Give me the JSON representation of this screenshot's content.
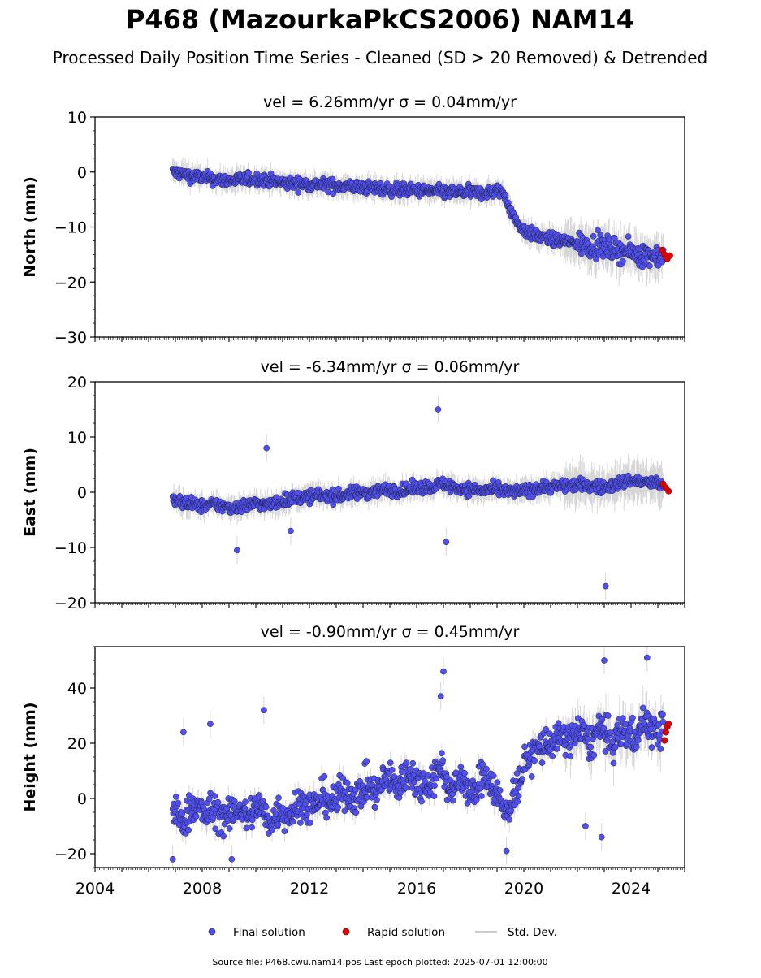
{
  "figure": {
    "title": "P468 (MazourkaPkCS2006) NAM14",
    "subtitle": "Processed Daily Position Time Series - Cleaned (SD > 20 Removed) & Detrended",
    "footer": "Source file: P468.cwu.nam14.pos  Last epoch plotted: 2025-07-01 12:00:00"
  },
  "legend": {
    "final": "Final solution",
    "rapid": "Rapid solution",
    "std": "Std. Dev."
  },
  "colors": {
    "final": "#5050f0",
    "rapid": "#e00000",
    "std": "#bbbbbb"
  },
  "chart_data": [
    {
      "type": "scatter",
      "panel": "north",
      "title": "vel = 6.26mm/yr   σ = 0.04mm/yr",
      "ylabel": "North (mm)",
      "xlim": [
        2004,
        2026
      ],
      "ylim": [
        -30,
        10
      ],
      "yticks": [
        10,
        0,
        -10,
        -20,
        -30
      ],
      "xticks": [
        2004,
        2008,
        2012,
        2016,
        2020,
        2024
      ],
      "series": [
        {
          "name": "Final solution",
          "x": [
            2006.9,
            2007.5,
            2008.0,
            2008.5,
            2009.0,
            2009.5,
            2010.0,
            2010.5,
            2011.0,
            2011.5,
            2012.0,
            2012.5,
            2013.0,
            2013.5,
            2014.0,
            2014.5,
            2015.0,
            2015.5,
            2016.0,
            2016.5,
            2017.0,
            2017.5,
            2018.0,
            2018.5,
            2019.0,
            2019.2,
            2019.4,
            2019.6,
            2019.8,
            2020.0,
            2020.3,
            2020.6,
            2021.0,
            2021.5,
            2022.0,
            2022.5,
            2023.0,
            2023.5,
            2024.0,
            2024.5,
            2025.0,
            2025.2
          ],
          "y": [
            0.0,
            -0.6,
            -1.0,
            -1.3,
            -1.6,
            -1.4,
            -1.2,
            -1.6,
            -2.0,
            -2.1,
            -2.2,
            -2.3,
            -2.5,
            -2.6,
            -2.8,
            -3.0,
            -3.2,
            -3.3,
            -3.4,
            -3.5,
            -3.6,
            -3.7,
            -3.7,
            -3.8,
            -3.5,
            -3.6,
            -5.5,
            -8.0,
            -9.5,
            -10.5,
            -11.3,
            -11.8,
            -12.2,
            -12.6,
            -13.0,
            -13.3,
            -13.7,
            -14.2,
            -14.6,
            -15.0,
            -15.2,
            -15.3
          ]
        },
        {
          "name": "Rapid solution",
          "x": [
            2025.15,
            2025.25,
            2025.35,
            2025.45
          ],
          "y": [
            -14.2,
            -15.0,
            -15.8,
            -15.2
          ]
        }
      ]
    },
    {
      "type": "scatter",
      "panel": "east",
      "title": "vel = -6.34mm/yr   σ = 0.06mm/yr",
      "ylabel": "East (mm)",
      "xlim": [
        2004,
        2026
      ],
      "ylim": [
        -20,
        20
      ],
      "yticks": [
        20,
        10,
        0,
        -10,
        -20
      ],
      "xticks": [
        2004,
        2008,
        2012,
        2016,
        2020,
        2024
      ],
      "series": [
        {
          "name": "Final solution",
          "x": [
            2006.9,
            2007.5,
            2008.0,
            2008.5,
            2009.0,
            2009.5,
            2010.0,
            2010.5,
            2011.0,
            2011.5,
            2012.0,
            2012.5,
            2013.0,
            2013.5,
            2014.0,
            2014.5,
            2015.0,
            2015.5,
            2016.0,
            2016.5,
            2017.0,
            2017.5,
            2018.0,
            2018.5,
            2019.0,
            2019.5,
            2020.0,
            2020.5,
            2021.0,
            2021.5,
            2022.0,
            2022.5,
            2023.0,
            2023.5,
            2024.0,
            2024.5,
            2025.0,
            2025.2
          ],
          "y": [
            -1.5,
            -2.0,
            -2.5,
            -2.2,
            -2.8,
            -2.5,
            -2.0,
            -2.3,
            -1.5,
            -1.0,
            -0.8,
            -0.5,
            -0.8,
            -0.3,
            0.0,
            0.2,
            0.5,
            0.3,
            0.8,
            1.0,
            1.5,
            0.8,
            0.5,
            0.3,
            0.5,
            0.0,
            0.2,
            0.8,
            1.0,
            1.2,
            1.3,
            1.2,
            0.8,
            1.5,
            2.2,
            1.8,
            1.6,
            1.4
          ]
        },
        {
          "name": "Rapid solution",
          "x": [
            2025.2,
            2025.3,
            2025.4
          ],
          "y": [
            1.5,
            0.8,
            0.2
          ]
        }
      ],
      "outliers": {
        "x": [
          2009.3,
          2016.8,
          2017.1,
          2023.05,
          2010.4,
          2011.3
        ],
        "y": [
          -10.5,
          15.0,
          -9.0,
          -17.0,
          8.0,
          -7.0
        ]
      }
    },
    {
      "type": "scatter",
      "panel": "height",
      "title": "vel = -0.90mm/yr   σ = 0.45mm/yr",
      "ylabel": "Height (mm)",
      "xlim": [
        2004,
        2026
      ],
      "ylim": [
        -25,
        55
      ],
      "yticks": [
        40,
        20,
        0,
        -20
      ],
      "xticks": [
        2004,
        2008,
        2012,
        2016,
        2020,
        2024
      ],
      "series": [
        {
          "name": "Final solution",
          "x": [
            2006.9,
            2007.3,
            2007.7,
            2008.1,
            2008.5,
            2008.9,
            2009.3,
            2009.7,
            2010.1,
            2010.5,
            2010.9,
            2011.3,
            2011.7,
            2012.1,
            2012.5,
            2012.9,
            2013.3,
            2013.7,
            2014.1,
            2014.5,
            2014.9,
            2015.3,
            2015.7,
            2016.1,
            2016.5,
            2016.9,
            2017.3,
            2017.7,
            2018.1,
            2018.5,
            2018.9,
            2019.3,
            2019.7,
            2020.1,
            2020.5,
            2020.9,
            2021.3,
            2021.7,
            2022.1,
            2022.5,
            2022.9,
            2023.3,
            2023.7,
            2024.1,
            2024.5,
            2024.9,
            2025.2
          ],
          "y": [
            -5,
            -8,
            -2,
            -6,
            -4,
            -8,
            -3,
            -7,
            -2,
            -9,
            -4,
            -6,
            -1,
            -4,
            1,
            -2,
            3,
            0,
            5,
            2,
            8,
            4,
            10,
            5,
            6,
            12,
            2,
            8,
            0,
            10,
            4,
            -6,
            3,
            14,
            18,
            20,
            21,
            22,
            24,
            20,
            26,
            19,
            25,
            22,
            28,
            24,
            25
          ]
        },
        {
          "name": "Rapid solution",
          "x": [
            2025.25,
            2025.3,
            2025.35,
            2025.4
          ],
          "y": [
            21,
            24,
            26,
            27
          ]
        }
      ],
      "outliers": {
        "x": [
          2007.3,
          2008.3,
          2010.3,
          2016.9,
          2017.0,
          2023.0,
          2022.9,
          2024.6,
          2022.3,
          2009.1,
          2019.35,
          2006.9
        ],
        "y": [
          24,
          27,
          32,
          37,
          46,
          50,
          -14,
          51,
          -10,
          -22,
          -19,
          -22
        ]
      }
    }
  ]
}
